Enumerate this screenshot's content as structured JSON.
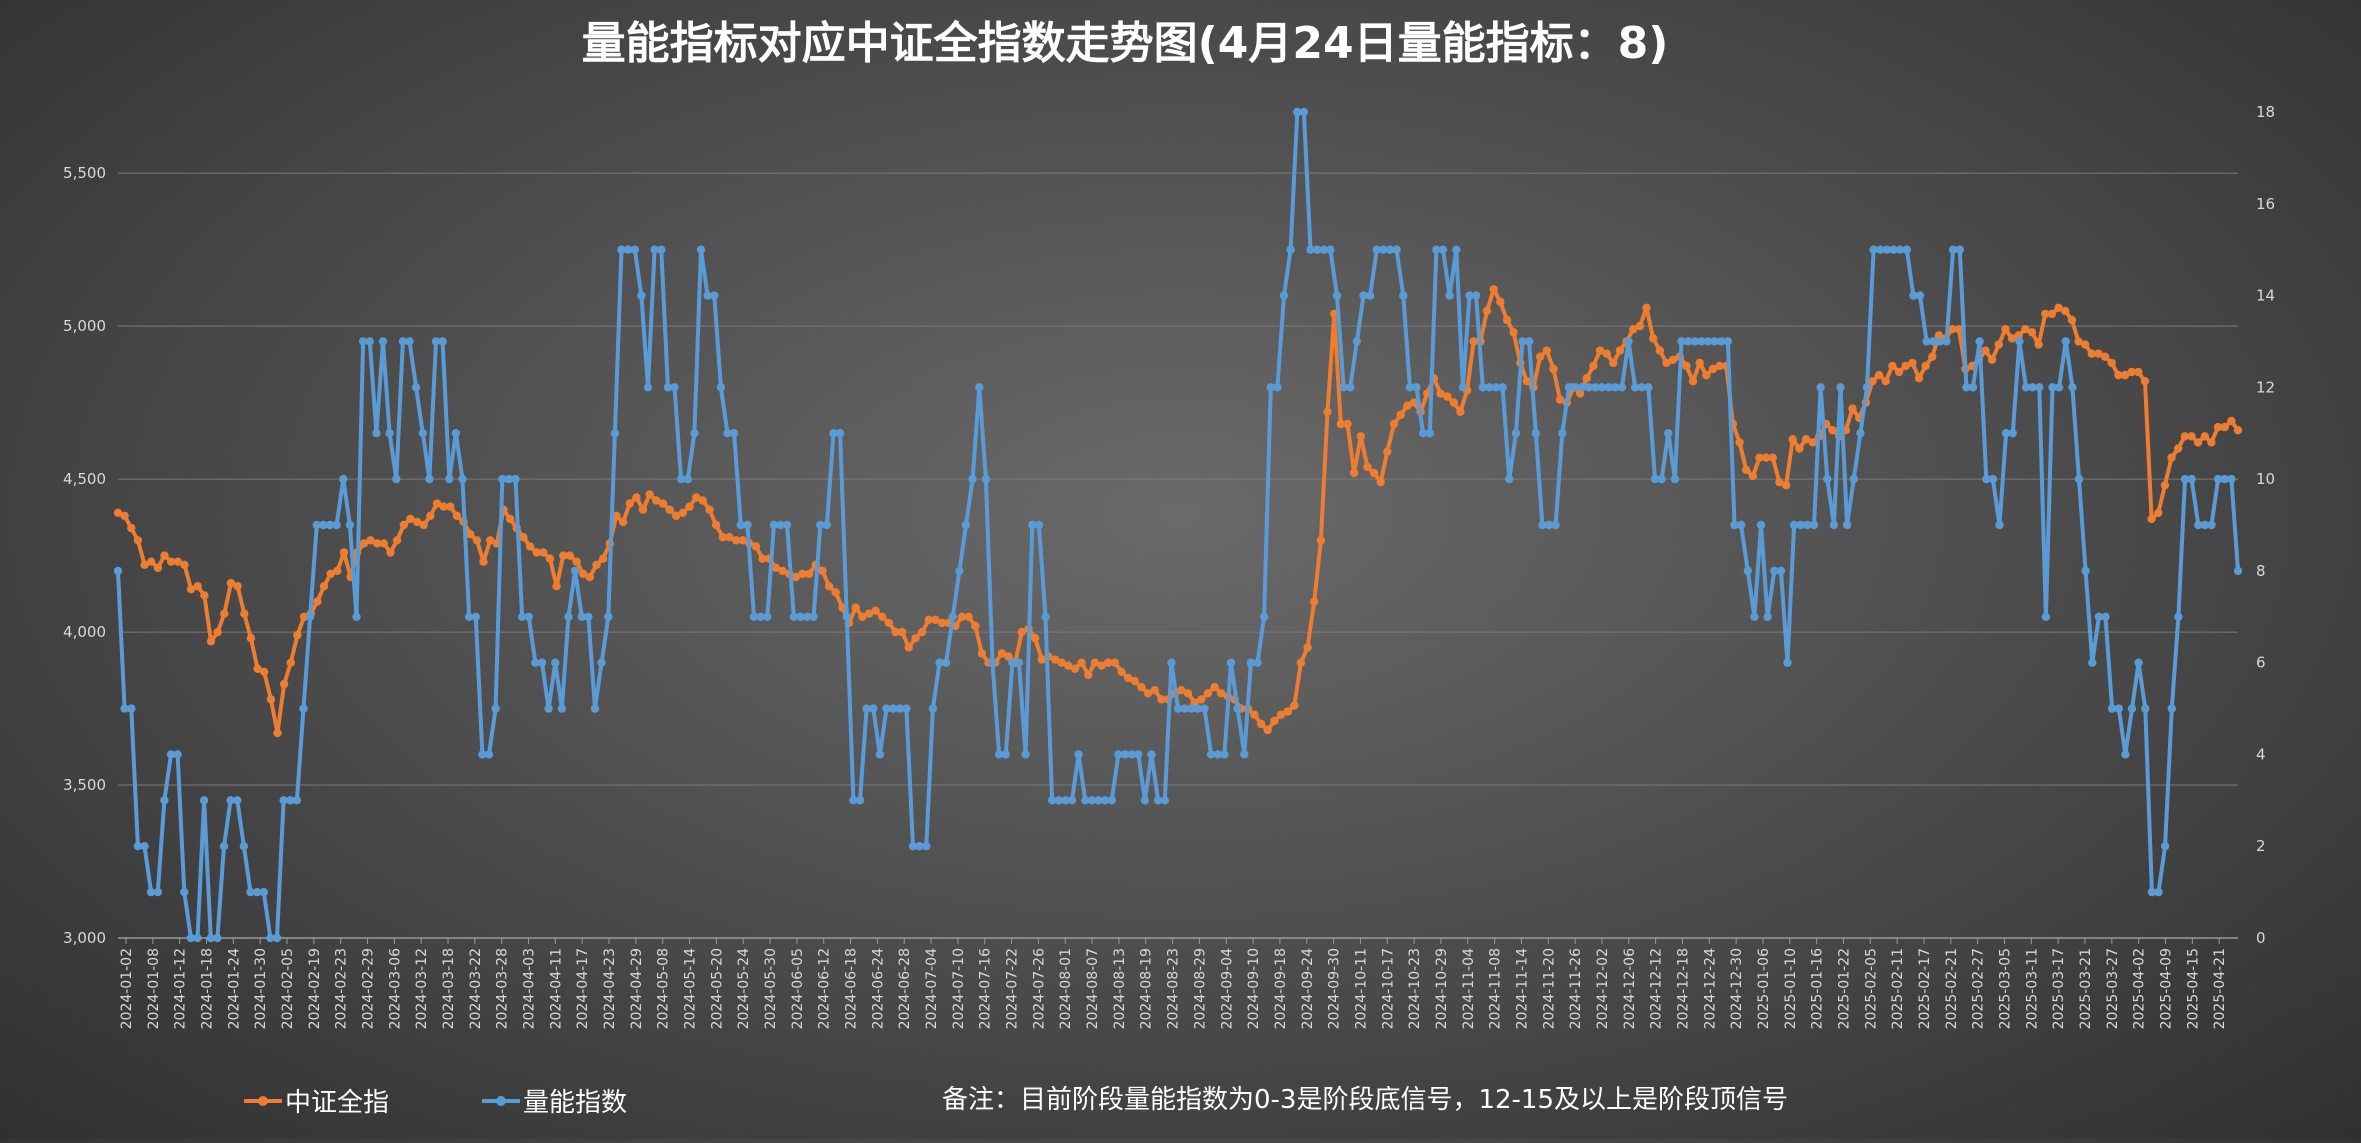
{
  "chart_data": {
    "type": "line",
    "title": "量能指标对应中证全指数走势图(4月24日量能指标：8)",
    "note": "备注：目前阶段量能指数为0-3是阶段底信号，12-15及以上是阶段顶信号",
    "y_left": {
      "min": 3000,
      "max": 5700,
      "ticks": [
        "3,000",
        "3,500",
        "4,000",
        "4,500",
        "5,000",
        "5,500"
      ],
      "tick_values": [
        3000,
        3500,
        4000,
        4500,
        5000,
        5500
      ]
    },
    "y_right": {
      "min": 0,
      "max": 18,
      "ticks": [
        "0",
        "2",
        "4",
        "6",
        "8",
        "10",
        "12",
        "14",
        "16",
        "18"
      ],
      "tick_values": [
        0,
        2,
        4,
        6,
        8,
        10,
        12,
        14,
        16,
        18
      ]
    },
    "grid": true,
    "legend_position": "bottom-left",
    "x_tick_labels": [
      "2024-01-02",
      "2024-01-08",
      "2024-01-12",
      "2024-01-18",
      "2024-01-24",
      "2024-01-30",
      "2024-02-05",
      "2024-02-19",
      "2024-02-23",
      "2024-02-29",
      "2024-03-06",
      "2024-03-12",
      "2024-03-18",
      "2024-03-22",
      "2024-03-28",
      "2024-04-03",
      "2024-04-11",
      "2024-04-17",
      "2024-04-23",
      "2024-04-29",
      "2024-05-08",
      "2024-05-14",
      "2024-05-20",
      "2024-05-24",
      "2024-05-30",
      "2024-06-05",
      "2024-06-12",
      "2024-06-18",
      "2024-06-24",
      "2024-06-28",
      "2024-07-04",
      "2024-07-10",
      "2024-07-16",
      "2024-07-22",
      "2024-07-26",
      "2024-08-01",
      "2024-08-07",
      "2024-08-13",
      "2024-08-19",
      "2024-08-23",
      "2024-08-29",
      "2024-09-04",
      "2024-09-10",
      "2024-09-18",
      "2024-09-24",
      "2024-09-30",
      "2024-10-11",
      "2024-10-17",
      "2024-10-23",
      "2024-10-29",
      "2024-11-04",
      "2024-11-08",
      "2024-11-14",
      "2024-11-20",
      "2024-11-26",
      "2024-12-02",
      "2024-12-06",
      "2024-12-12",
      "2024-12-18",
      "2024-12-24",
      "2024-12-30",
      "2025-01-06",
      "2025-01-10",
      "2025-01-16",
      "2025-01-22",
      "2025-02-05",
      "2025-02-11",
      "2025-02-17",
      "2025-02-21",
      "2025-02-27",
      "2025-03-05",
      "2025-03-11",
      "2025-03-17",
      "2025-03-21",
      "2025-03-27",
      "2025-04-02",
      "2025-04-09",
      "2025-04-15",
      "2025-04-21"
    ],
    "series": [
      {
        "name": "中证全指",
        "axis": "left",
        "color": "#ED7D31",
        "values": [
          4390,
          4380,
          4340,
          4300,
          4220,
          4230,
          4210,
          4250,
          4230,
          4230,
          4220,
          4140,
          4150,
          4120,
          3970,
          4000,
          4060,
          4160,
          4150,
          4060,
          3980,
          3880,
          3870,
          3780,
          3670,
          3830,
          3900,
          3990,
          4050,
          4060,
          4100,
          4150,
          4190,
          4200,
          4260,
          4180,
          4260,
          4290,
          4300,
          4290,
          4290,
          4260,
          4300,
          4350,
          4370,
          4360,
          4350,
          4380,
          4420,
          4410,
          4410,
          4380,
          4360,
          4320,
          4300,
          4230,
          4300,
          4290,
          4400,
          4370,
          4340,
          4310,
          4280,
          4260,
          4260,
          4240,
          4150,
          4250,
          4250,
          4230,
          4190,
          4180,
          4220,
          4240,
          4290,
          4380,
          4360,
          4420,
          4440,
          4400,
          4450,
          4430,
          4420,
          4400,
          4380,
          4390,
          4410,
          4440,
          4430,
          4400,
          4350,
          4310,
          4310,
          4300,
          4300,
          4290,
          4280,
          4240,
          4240,
          4210,
          4200,
          4190,
          4180,
          4190,
          4190,
          4220,
          4200,
          4150,
          4130,
          4080,
          4030,
          4080,
          4050,
          4060,
          4070,
          4050,
          4030,
          4000,
          4000,
          3950,
          3980,
          4000,
          4040,
          4040,
          4030,
          4030,
          4020,
          4050,
          4050,
          4020,
          3930,
          3900,
          3900,
          3930,
          3920,
          3900,
          4000,
          4010,
          3980,
          3910,
          3920,
          3910,
          3900,
          3890,
          3880,
          3900,
          3860,
          3900,
          3890,
          3900,
          3900,
          3870,
          3850,
          3840,
          3820,
          3800,
          3810,
          3780,
          3780,
          3800,
          3810,
          3800,
          3770,
          3780,
          3800,
          3820,
          3800,
          3790,
          3780,
          3750,
          3750,
          3730,
          3700,
          3680,
          3710,
          3730,
          3740,
          3760,
          3900,
          3950,
          4100,
          4300,
          4720,
          5040,
          4680,
          4680,
          4520,
          4640,
          4540,
          4520,
          4490,
          4590,
          4680,
          4710,
          4740,
          4750,
          4720,
          4780,
          4830,
          4780,
          4770,
          4750,
          4720,
          4790,
          4950,
          4950,
          5050,
          5120,
          5080,
          5020,
          4980,
          4880,
          4820,
          4800,
          4900,
          4920,
          4860,
          4760,
          4750,
          4800,
          4780,
          4830,
          4870,
          4920,
          4910,
          4880,
          4920,
          4950,
          4990,
          5000,
          5060,
          4960,
          4920,
          4880,
          4890,
          4900,
          4870,
          4820,
          4880,
          4840,
          4860,
          4870,
          4870,
          4680,
          4620,
          4530,
          4510,
          4570,
          4570,
          4570,
          4490,
          4480,
          4630,
          4600,
          4630,
          4620,
          4640,
          4680,
          4660,
          4640,
          4660,
          4730,
          4700,
          4750,
          4820,
          4840,
          4820,
          4870,
          4850,
          4870,
          4880,
          4830,
          4870,
          4900,
          4970,
          4960,
          4990,
          4990,
          4860,
          4870,
          4890,
          4920,
          4890,
          4940,
          4990,
          4960,
          4970,
          4990,
          4980,
          4940,
          5040,
          5040,
          5060,
          5050,
          5020,
          4950,
          4940,
          4910,
          4910,
          4900,
          4880,
          4840,
          4840,
          4850,
          4850,
          4820,
          4370,
          4390,
          4480,
          4570,
          4600,
          4640,
          4640,
          4620,
          4640,
          4620,
          4670,
          4670,
          4690,
          4660
        ]
      },
      {
        "name": "量能指数",
        "axis": "right",
        "color": "#5B9BD5",
        "values": [
          8,
          5,
          5,
          2,
          2,
          1,
          1,
          3,
          4,
          4,
          1,
          0,
          0,
          3,
          0,
          0,
          2,
          3,
          3,
          2,
          1,
          1,
          1,
          0,
          0,
          3,
          3,
          3,
          5,
          7,
          9,
          9,
          9,
          9,
          10,
          9,
          7,
          13,
          13,
          11,
          13,
          11,
          10,
          13,
          13,
          12,
          11,
          10,
          13,
          13,
          10,
          11,
          10,
          7,
          7,
          4,
          4,
          5,
          10,
          10,
          10,
          7,
          7,
          6,
          6,
          5,
          6,
          5,
          7,
          8,
          7,
          7,
          5,
          6,
          7,
          11,
          15,
          15,
          15,
          14,
          12,
          15,
          15,
          12,
          12,
          10,
          10,
          11,
          15,
          14,
          14,
          12,
          11,
          11,
          9,
          9,
          7,
          7,
          7,
          9,
          9,
          9,
          7,
          7,
          7,
          7,
          9,
          9,
          11,
          11,
          7,
          3,
          3,
          5,
          5,
          4,
          5,
          5,
          5,
          5,
          2,
          2,
          2,
          5,
          6,
          6,
          7,
          8,
          9,
          10,
          12,
          10,
          6,
          4,
          4,
          6,
          6,
          4,
          9,
          9,
          7,
          3,
          3,
          3,
          3,
          4,
          3,
          3,
          3,
          3,
          3,
          4,
          4,
          4,
          4,
          3,
          4,
          3,
          3,
          6,
          5,
          5,
          5,
          5,
          5,
          4,
          4,
          4,
          6,
          5,
          4,
          6,
          6,
          7,
          12,
          12,
          14,
          15,
          18,
          18,
          15,
          15,
          15,
          15,
          14,
          12,
          12,
          13,
          14,
          14,
          15,
          15,
          15,
          15,
          14,
          12,
          12,
          11,
          11,
          15,
          15,
          14,
          15,
          12,
          14,
          14,
          12,
          12,
          12,
          12,
          10,
          11,
          13,
          13,
          11,
          9,
          9,
          9,
          11,
          12,
          12,
          12,
          12,
          12,
          12,
          12,
          12,
          12,
          13,
          12,
          12,
          12,
          10,
          10,
          11,
          10,
          13,
          13,
          13,
          13,
          13,
          13,
          13,
          13,
          9,
          9,
          8,
          7,
          9,
          7,
          8,
          8,
          6,
          9,
          9,
          9,
          9,
          12,
          10,
          9,
          12,
          9,
          10,
          11,
          12,
          15,
          15,
          15,
          15,
          15,
          15,
          14,
          14,
          13,
          13,
          13,
          13,
          15,
          15,
          12,
          12,
          13,
          10,
          10,
          9,
          11,
          11,
          13,
          12,
          12,
          12,
          7,
          12,
          12,
          13,
          12,
          10,
          8,
          6,
          7,
          7,
          5,
          5,
          4,
          5,
          6,
          5,
          1,
          1,
          2,
          5,
          7,
          10,
          10,
          9,
          9,
          9,
          10,
          10,
          10,
          8
        ]
      }
    ]
  }
}
